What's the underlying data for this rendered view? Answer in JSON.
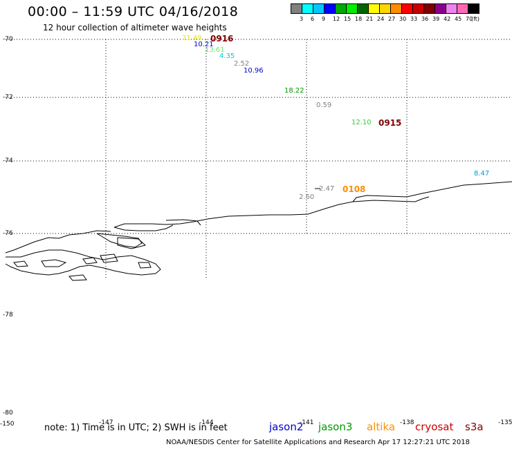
{
  "header": {
    "title": "00:00 – 11:59 UTC 04/16/2018",
    "subtitle": "12 hour collection of altimeter wave heights"
  },
  "colorbar": {
    "colors": [
      "#808080",
      "#00ffff",
      "#00c8ff",
      "#0000ff",
      "#00aa00",
      "#00ee00",
      "#006400",
      "#ffff00",
      "#ffd700",
      "#ff8c00",
      "#ff0000",
      "#c80000",
      "#800000",
      "#8b008b",
      "#ee82ee",
      "#ff69b4",
      "#000000"
    ],
    "labels": [
      "3",
      "6",
      "9",
      "12",
      "15",
      "18",
      "21",
      "24",
      "27",
      "30",
      "33",
      "36",
      "39",
      "42",
      "45",
      "70"
    ],
    "unit": "(ft)"
  },
  "axes": {
    "lat_labels": [
      "-70",
      "-72",
      "-74",
      "-76",
      "-78",
      "-78",
      "-80"
    ],
    "lon_labels": [
      "-150",
      "-147",
      "-144",
      "-141",
      "-138",
      "-135"
    ]
  },
  "observations": [
    {
      "text": "21.49",
      "color": "#e6e600"
    },
    {
      "text": "0916",
      "color": "#800000",
      "kind": "time"
    },
    {
      "text": "10.21",
      "color": "#0000cc"
    },
    {
      "text": "13.61",
      "color": "#66ee66"
    },
    {
      "text": "4.35",
      "color": "#00ccdd"
    },
    {
      "text": "2.52",
      "color": "#808080"
    },
    {
      "text": "10.96",
      "color": "#0000cc"
    },
    {
      "text": "18.22",
      "color": "#009900"
    },
    {
      "text": "0.59",
      "color": "#808080"
    },
    {
      "text": "12.10",
      "color": "#33cc33"
    },
    {
      "text": "0915",
      "color": "#800000",
      "kind": "time"
    },
    {
      "text": "8.47",
      "color": "#0099dd"
    },
    {
      "text": "2.47",
      "color": "#808080"
    },
    {
      "text": "0108",
      "color": "#ff8c00",
      "kind": "time"
    },
    {
      "text": "2.60",
      "color": "#808080"
    }
  ],
  "footer": {
    "note": "note: 1) Time is in UTC; 2) SWH is in feet",
    "satellites": [
      {
        "name": "jason2",
        "color": "#0000cc"
      },
      {
        "name": "jason3",
        "color": "#009900"
      },
      {
        "name": "altika",
        "color": "#ff8c00"
      },
      {
        "name": "cryosat",
        "color": "#cc0000"
      },
      {
        "name": "s3a",
        "color": "#800000"
      }
    ],
    "credit": "NOAA/NESDIS Center for Satellite Applications and Research    Apr 17 12:27:21 UTC 2018"
  }
}
